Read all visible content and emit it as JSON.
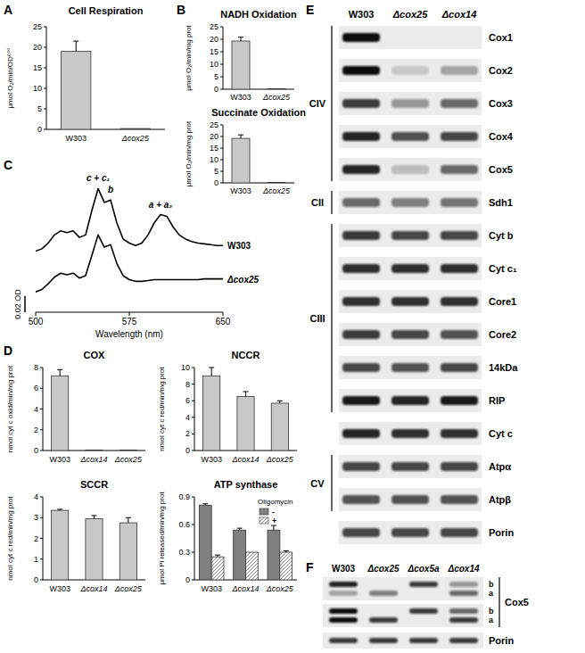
{
  "panel_labels": [
    "A",
    "B",
    "C",
    "D",
    "E",
    "F"
  ],
  "chart_data": [
    {
      "type": "bar",
      "title": "Cell Respiration",
      "ylabel": "μmol O₂/min/OD⁶⁰⁰",
      "categories": [
        "W303",
        "Δcox25"
      ],
      "values": [
        19,
        0.2
      ],
      "errors": [
        2.5,
        null
      ],
      "color": "#c8c8c8",
      "ylim": [
        0,
        25
      ],
      "yticks": [
        0,
        5,
        10,
        15,
        20,
        25
      ]
    },
    {
      "type": "bar",
      "title": "NADH Oxidation",
      "ylabel": "μmol O₂/min/mg prot",
      "categories": [
        "W303",
        "Δcox25"
      ],
      "values": [
        19.3,
        0.2
      ],
      "errors": [
        1.5,
        null
      ],
      "color": "#c8c8c8",
      "ylim": [
        0,
        25
      ],
      "yticks": [
        0,
        5,
        10,
        15,
        20,
        25
      ]
    },
    {
      "type": "bar",
      "title": "Succinate Oxidation",
      "ylabel": "μmol O₂/min/mg prot",
      "categories": [
        "W303",
        "Δcox25"
      ],
      "values": [
        19.2,
        0.2
      ],
      "errors": [
        1.5,
        null
      ],
      "color": "#c8c8c8",
      "ylim": [
        0,
        25
      ],
      "yticks": [
        0,
        5,
        10,
        15,
        20,
        25
      ]
    },
    {
      "type": "line",
      "xlabel": "Wavelength (nm)",
      "x": [
        500,
        505,
        510,
        515,
        520,
        525,
        530,
        535,
        540,
        545,
        550,
        555,
        560,
        565,
        570,
        575,
        580,
        585,
        590,
        595,
        600,
        605,
        610,
        615,
        620,
        625,
        630,
        635,
        640,
        645,
        650
      ],
      "series": [
        {
          "name": "W303",
          "color": "#000000",
          "values": [
            0.075,
            0.078,
            0.085,
            0.095,
            0.1,
            0.098,
            0.1,
            0.092,
            0.095,
            0.125,
            0.152,
            0.135,
            0.138,
            0.11,
            0.09,
            0.085,
            0.082,
            0.085,
            0.095,
            0.11,
            0.12,
            0.118,
            0.105,
            0.095,
            0.09,
            0.087,
            0.085,
            0.084,
            0.083,
            0.082,
            0.082
          ]
        },
        {
          "name": "Δcox25",
          "color": "#000000",
          "values": [
            0.025,
            0.028,
            0.035,
            0.043,
            0.048,
            0.046,
            0.048,
            0.042,
            0.045,
            0.07,
            0.095,
            0.08,
            0.083,
            0.06,
            0.045,
            0.04,
            0.038,
            0.038,
            0.039,
            0.04,
            0.04,
            0.04,
            0.04,
            0.04,
            0.04,
            0.04,
            0.04,
            0.041,
            0.041,
            0.041,
            0.041
          ]
        }
      ],
      "xlim": [
        500,
        650
      ],
      "xticks": [
        500,
        575,
        650
      ],
      "ylim": [
        0,
        0.17
      ],
      "tick_labels": "x",
      "annotations": [
        {
          "text": "c + c₁",
          "x": 550
        },
        {
          "text": "b",
          "x": 560
        },
        {
          "text": "a + a₃",
          "x": 600
        }
      ],
      "scale_bar": {
        "value": 0.02,
        "label": "0.02 OD"
      }
    },
    {
      "type": "bar",
      "title": "COX",
      "ylabel": "nmol cyt c oxid/min/mg prot",
      "categories": [
        "W303",
        "Δcox14",
        "Δcox25"
      ],
      "values": [
        7.2,
        0.05,
        0.05
      ],
      "errors": [
        0.6,
        null,
        null
      ],
      "color": "#c8c8c8",
      "ylim": [
        0,
        8
      ],
      "yticks": [
        0,
        2,
        4,
        6,
        8
      ]
    },
    {
      "type": "bar",
      "title": "NCCR",
      "ylabel": "nmol cyt c red/min/mg prot",
      "categories": [
        "W303",
        "Δcox14",
        "Δcox25"
      ],
      "values": [
        9.0,
        6.5,
        5.7
      ],
      "errors": [
        1.0,
        0.6,
        0.3
      ],
      "color": "#c8c8c8",
      "ylim": [
        0,
        10
      ],
      "yticks": [
        0,
        2,
        4,
        6,
        8,
        10
      ]
    },
    {
      "type": "bar",
      "title": "SCCR",
      "ylabel": "nmol cyt c red/min/mg prot",
      "categories": [
        "W303",
        "Δcox14",
        "Δcox25"
      ],
      "values": [
        3.35,
        2.95,
        2.75
      ],
      "errors": [
        0.05,
        0.15,
        0.25
      ],
      "color": "#c8c8c8",
      "ylim": [
        0,
        4
      ],
      "yticks": [
        0,
        1,
        2,
        3,
        4
      ]
    },
    {
      "type": "bar",
      "title": "ATP synthase",
      "ylabel": "μmol Pi released/min/mg prot",
      "categories": [
        "W303",
        "Δcox14",
        "Δcox25"
      ],
      "series": [
        {
          "name": "-",
          "color": "#808080",
          "values": [
            0.81,
            0.54,
            0.54
          ],
          "errors": [
            0.015,
            0.02,
            0.05
          ]
        },
        {
          "name": "+",
          "color": "#8a8a8a",
          "values": [
            0.25,
            0.3,
            0.3
          ],
          "errors": [
            0.02,
            null,
            0.015
          ]
        }
      ],
      "ylim": [
        0,
        0.9
      ],
      "yticks": [
        0,
        0.3,
        0.6,
        0.9
      ],
      "legend": "upper right",
      "annotations": [
        {
          "text": "Oligomycin"
        }
      ]
    }
  ],
  "blots": {
    "lanes": [
      "W303",
      "Δcox25",
      "Δcox14"
    ],
    "groups": [
      {
        "label": "CIV",
        "rows": [
          {
            "label": "Cox1",
            "intensity": [
              1,
              0,
              0
            ]
          },
          {
            "label": "Cox2",
            "intensity": [
              1,
              0.15,
              0.3
            ]
          },
          {
            "label": "Cox3",
            "intensity": [
              0.8,
              0.4,
              0.6
            ]
          },
          {
            "label": "Cox4",
            "intensity": [
              0.9,
              0.7,
              0.75
            ]
          },
          {
            "label": "Cox5",
            "intensity": [
              0.9,
              0.2,
              0.6
            ]
          }
        ]
      },
      {
        "label": "CII",
        "rows": [
          {
            "label": "Sdh1",
            "intensity": [
              0.6,
              0.5,
              0.55
            ]
          }
        ]
      },
      {
        "label": "CIII",
        "rows": [
          {
            "label": "Cyt b",
            "intensity": [
              0.8,
              0.75,
              0.75
            ]
          },
          {
            "label": "Cyt c₁",
            "intensity": [
              0.85,
              0.85,
              0.85
            ]
          },
          {
            "label": "Core1",
            "intensity": [
              0.85,
              0.85,
              0.85
            ]
          },
          {
            "label": "Core2",
            "intensity": [
              0.8,
              0.75,
              0.7
            ]
          },
          {
            "label": "14kDa",
            "intensity": [
              0.75,
              0.7,
              0.75
            ]
          },
          {
            "label": "RIP",
            "intensity": [
              0.95,
              0.9,
              0.95
            ]
          }
        ]
      },
      {
        "label": null,
        "rows": [
          {
            "label": "Cyt c",
            "intensity": [
              0.9,
              0.85,
              0.85
            ]
          }
        ]
      },
      {
        "label": "CV",
        "rows": [
          {
            "label": "Atpα",
            "intensity": [
              0.75,
              0.75,
              0.75
            ]
          },
          {
            "label": "Atpβ",
            "intensity": [
              0.7,
              0.7,
              0.7
            ]
          }
        ]
      },
      {
        "label": null,
        "rows": [
          {
            "label": "Porin",
            "intensity": [
              0.75,
              0.75,
              0.75
            ]
          }
        ]
      }
    ]
  },
  "blots_f": {
    "lanes": [
      "W303",
      "Δcox25",
      "Δcox5a",
      "Δcox14"
    ],
    "protein": "Cox5",
    "isoforms": [
      "b",
      "a"
    ],
    "exposures": [
      {
        "b": [
          0.9,
          0,
          0.8,
          0.4
        ],
        "a": [
          0.3,
          0.5,
          0,
          0.6
        ]
      },
      {
        "b": [
          1,
          0,
          0.8,
          0.6
        ],
        "a": [
          1,
          0.8,
          0,
          0.8
        ]
      }
    ],
    "loading": {
      "label": "Porin",
      "intensity": [
        0.8,
        0.8,
        0.8,
        0.8
      ]
    }
  }
}
